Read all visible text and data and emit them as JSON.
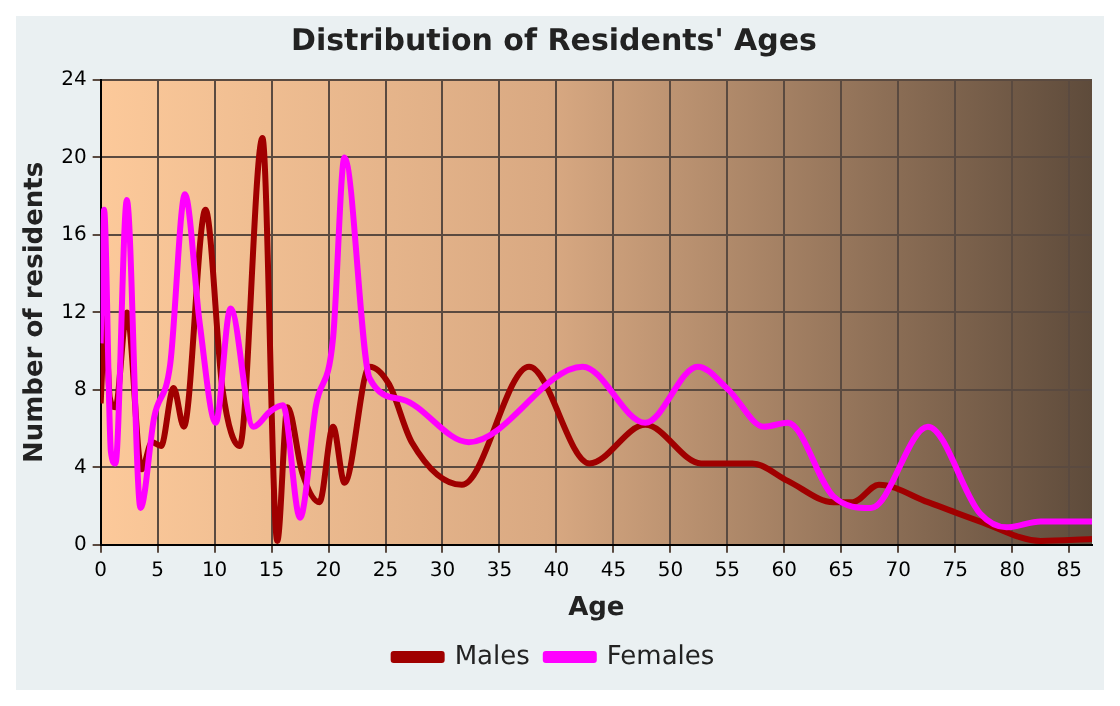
{
  "chart_data": {
    "type": "line",
    "title": "Distribution of Residents' Ages",
    "xlabel": "Age",
    "ylabel": "Number of residents",
    "xlim": [
      0,
      87
    ],
    "xticks": [
      0,
      5,
      10,
      15,
      20,
      25,
      30,
      35,
      40,
      45,
      50,
      55,
      60,
      65,
      70,
      75,
      80,
      85
    ],
    "ylim": [
      0,
      24
    ],
    "yticks": [
      0,
      4,
      8,
      12,
      16,
      20,
      24
    ],
    "grid": true,
    "legend": "bottom",
    "marker": "none",
    "line_style": "solid",
    "series": [
      {
        "name": "Males",
        "color": "#a00000",
        "x": [
          0,
          0.4,
          0.8,
          1.3,
          2.3,
          3.6,
          4.5,
          5.3,
          6.4,
          7.3,
          9.2,
          10.7,
          12.2,
          14.2,
          15.5,
          16.4,
          17.7,
          19.2,
          20.4,
          21.4,
          23.6,
          25.3,
          27.3,
          31.7,
          37.6,
          42.9,
          47.8,
          52.7,
          57.2,
          60.3,
          64.3,
          66,
          68.3,
          72.6,
          77.2,
          82.5,
          87
        ],
        "values": [
          7.3,
          11.7,
          7.6,
          7.1,
          12,
          3.9,
          5.3,
          5.1,
          8.1,
          6.1,
          17.3,
          8,
          5.1,
          21,
          0.2,
          7.1,
          3.7,
          2.2,
          6.1,
          3.2,
          9.2,
          8.3,
          5.3,
          3.1,
          9.2,
          4.2,
          6.2,
          4.2,
          4.2,
          3.3,
          2.2,
          2.2,
          3.1,
          2.2,
          1.2,
          0.2,
          0.3
        ]
      },
      {
        "name": "Females",
        "color": "#ff00ff",
        "x": [
          0,
          0.3,
          0.9,
          1.3,
          2.3,
          3.5,
          4.7,
          6.1,
          7.4,
          8.7,
          10.1,
          11.4,
          13.4,
          14.9,
          16,
          17.5,
          18.9,
          20.4,
          21.4,
          23.6,
          26.5,
          32.3,
          42.3,
          47.8,
          52.4,
          55.1,
          58.2,
          60.3,
          64.3,
          67.6,
          72.6,
          77.2,
          79.5,
          82.5,
          87
        ],
        "values": [
          10.4,
          17.3,
          4.8,
          4.2,
          17.8,
          1.9,
          6.6,
          9.3,
          18.1,
          11.4,
          6.3,
          12.2,
          6.1,
          6.9,
          7.2,
          1.4,
          7.2,
          10.7,
          20,
          8.6,
          7.5,
          5.3,
          9.2,
          6.3,
          9.2,
          8,
          6.1,
          6.3,
          2.5,
          1.9,
          6.1,
          1.6,
          0.9,
          1.2,
          1.2
        ]
      }
    ]
  }
}
